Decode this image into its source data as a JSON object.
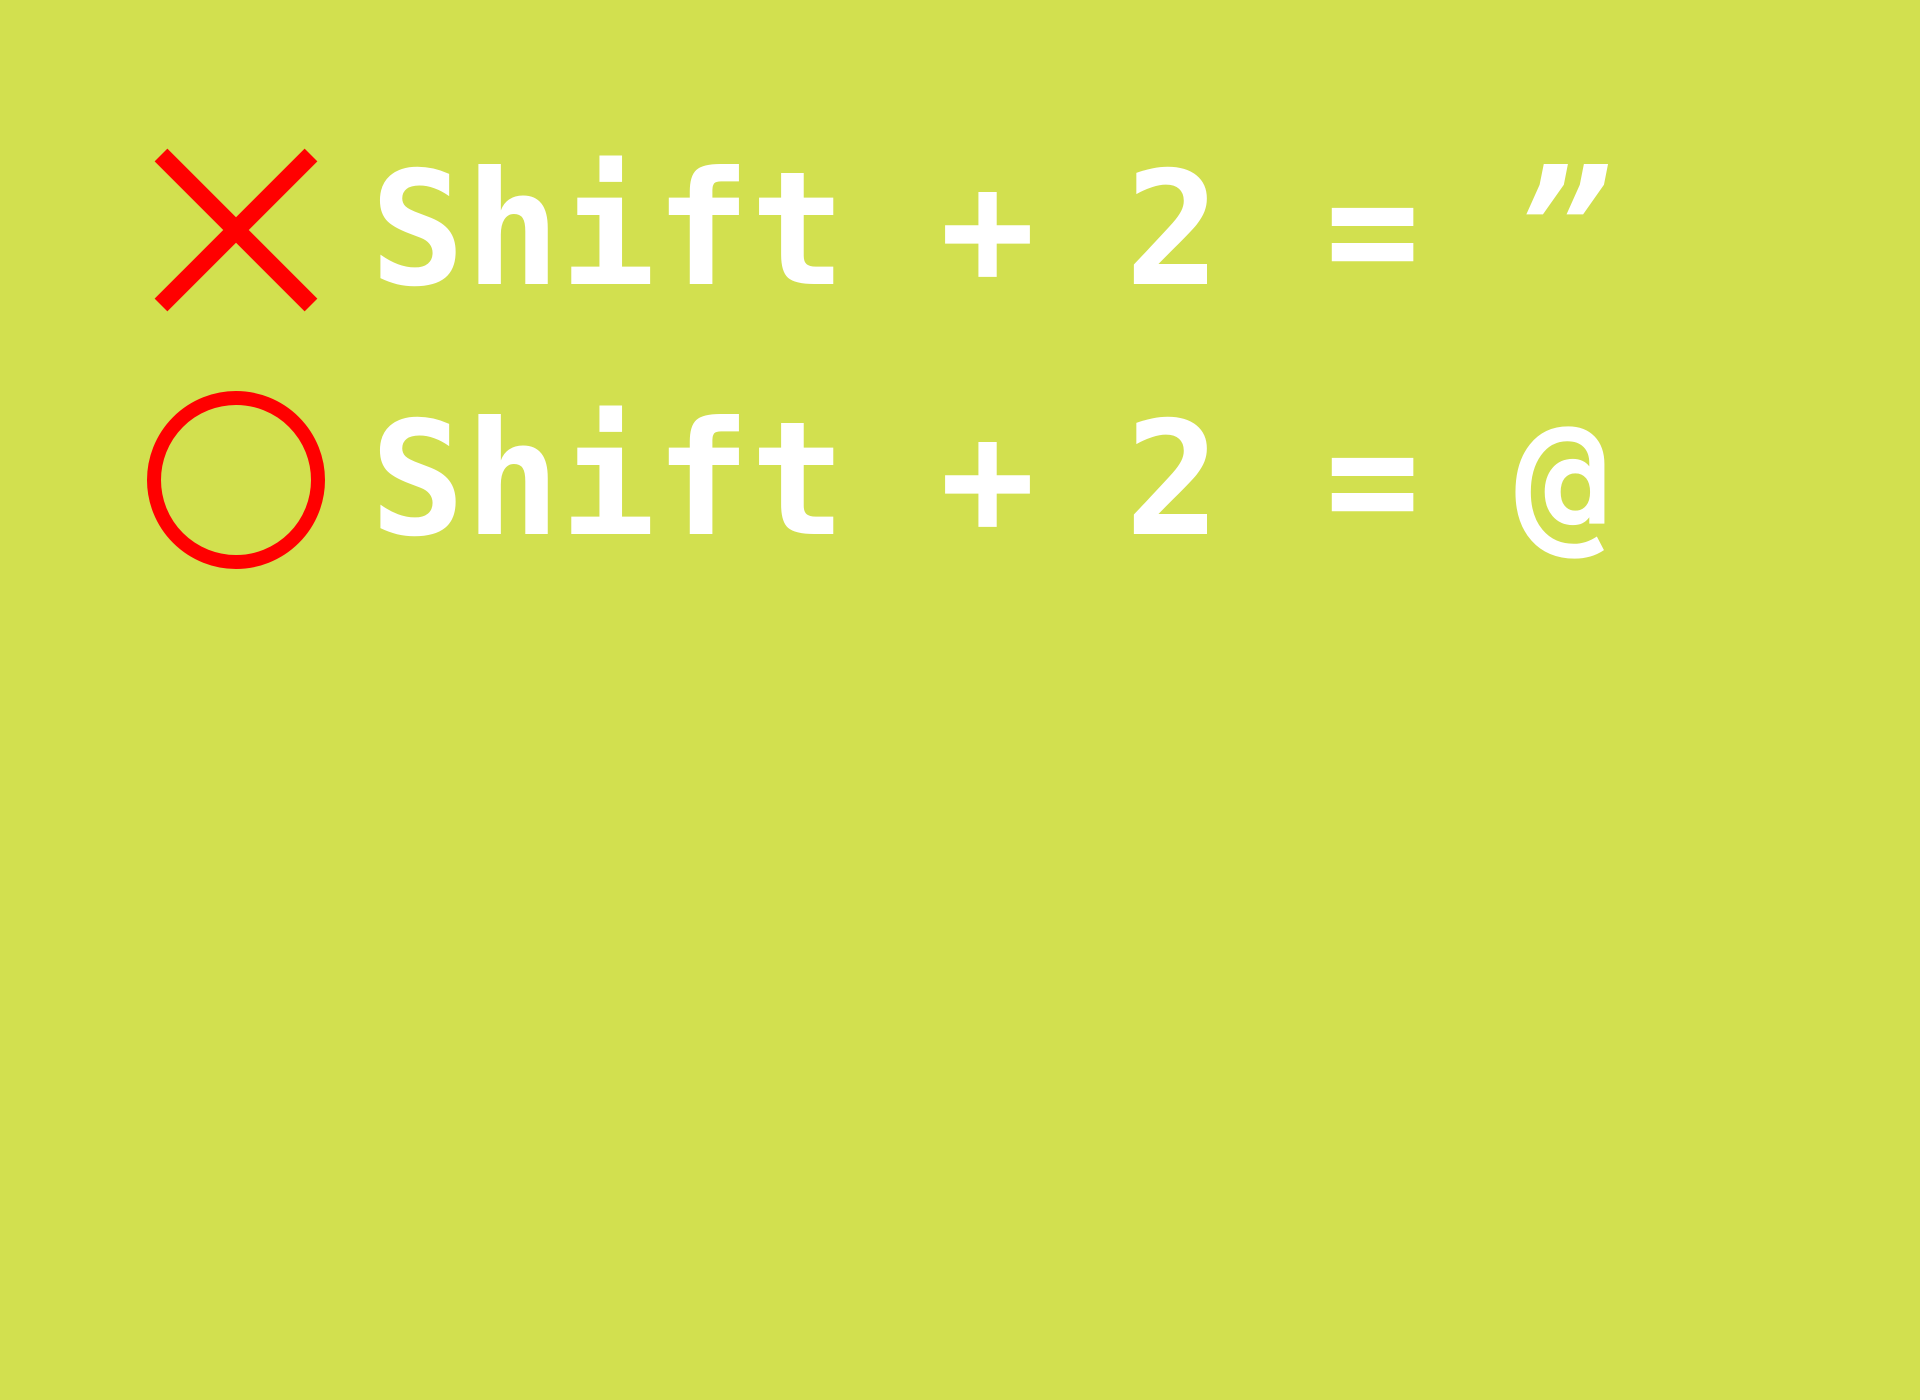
{
  "rows": [
    {
      "status": "incorrect",
      "status_icon": "cross-icon",
      "status_color": "#ff0000",
      "key": "Shift",
      "plus": "+",
      "digit": "2",
      "equals": "=",
      "result": "”"
    },
    {
      "status": "correct",
      "status_icon": "circle-icon",
      "status_color": "#ff0000",
      "key": "Shift",
      "plus": "+",
      "digit": "2",
      "equals": "=",
      "result": "@"
    }
  ],
  "colors": {
    "background": "#d2e04f",
    "text": "#ffffff",
    "marker": "#ff0000"
  }
}
